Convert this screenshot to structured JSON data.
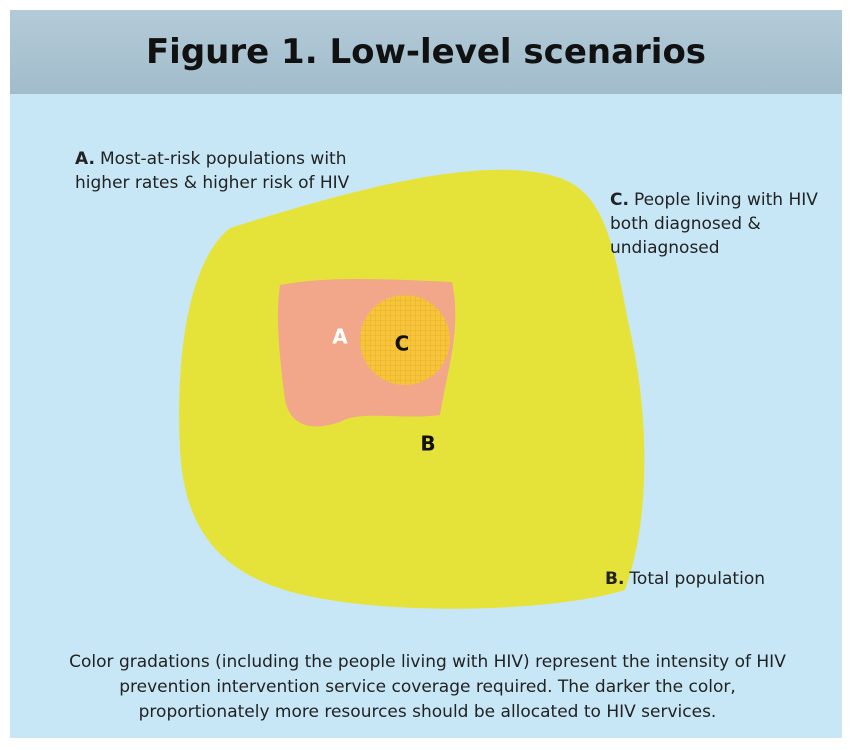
{
  "header": {
    "title": "Figure 1. Low-level scenarios"
  },
  "labels": [
    {
      "letter": "A.",
      "text": "Most-at-risk populations with higher rates & higher risk of HIV"
    },
    {
      "letter": "C.",
      "text": "People living with HIV both diagnosed & undiagnosed"
    },
    {
      "letter": "B.",
      "text": "Total population"
    }
  ],
  "shape_labels": [
    "A",
    "C",
    "B"
  ],
  "caption": "Color gradations (including the people living with HIV) represent the intensity of HIV prevention intervention service coverage required. The darker the color, proportionately more resources should be allocated to HIV services."
}
